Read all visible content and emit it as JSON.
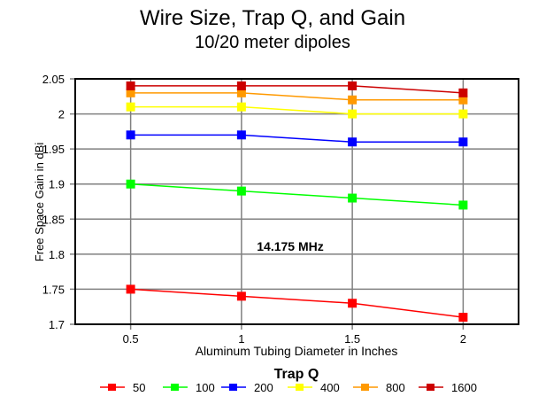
{
  "chart_data": {
    "type": "line",
    "title": "Wire Size, Trap Q, and Gain",
    "subtitle": "10/20 meter dipoles",
    "xlabel": "Aluminum Tubing Diameter in Inches",
    "ylabel": "Free Space Gain in dBi",
    "annotation": "14.175 MHz",
    "x": [
      0.5,
      1,
      1.5,
      2
    ],
    "x_tick_labels": [
      "0.5",
      "1",
      "1.5",
      "2"
    ],
    "xlim": [
      0.25,
      2.25
    ],
    "ylim": [
      1.7,
      2.05
    ],
    "y_ticks": [
      1.7,
      1.75,
      1.8,
      1.85,
      1.9,
      1.95,
      2,
      2.05
    ],
    "y_tick_labels": [
      "1.7",
      "1.75",
      "1.8",
      "1.85",
      "1.9",
      "1.95",
      "2",
      "2.05"
    ],
    "grid": true,
    "legend_title": "Trap Q",
    "legend_placement": "bottom",
    "series": [
      {
        "name": "50",
        "color": "#ff0000",
        "values": [
          1.75,
          1.74,
          1.73,
          1.71
        ]
      },
      {
        "name": "100",
        "color": "#00ff00",
        "values": [
          1.9,
          1.89,
          1.88,
          1.87
        ]
      },
      {
        "name": "200",
        "color": "#0000ff",
        "values": [
          1.97,
          1.97,
          1.96,
          1.96
        ]
      },
      {
        "name": "400",
        "color": "#ffff00",
        "values": [
          2.01,
          2.01,
          2.0,
          2.0
        ]
      },
      {
        "name": "800",
        "color": "#ff9900",
        "values": [
          2.03,
          2.03,
          2.02,
          2.02
        ]
      },
      {
        "name": "1600",
        "color": "#cc0000",
        "values": [
          2.04,
          2.04,
          2.04,
          2.03
        ]
      }
    ]
  }
}
